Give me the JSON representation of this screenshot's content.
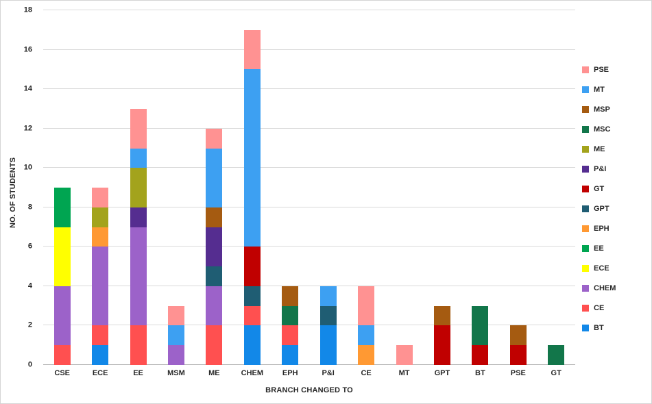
{
  "chart_data": {
    "type": "bar",
    "stacked": true,
    "title": "",
    "xlabel": "BRANCH CHANGED TO",
    "ylabel": "NO. OF STUDENTS",
    "ylim": [
      0,
      18
    ],
    "ytick_step": 2,
    "grid": "horizontal",
    "legend_position": "right",
    "categories": [
      "CSE",
      "ECE",
      "EE",
      "MSM",
      "ME",
      "CHEM",
      "EPH",
      "P&I",
      "CE",
      "MT",
      "GPT",
      "BT",
      "PSE",
      "GT"
    ],
    "series": [
      {
        "name": "BT",
        "color": "#1288E8",
        "values": [
          0,
          1,
          0,
          0,
          0,
          2,
          1,
          2,
          0,
          0,
          0,
          0,
          0,
          0
        ]
      },
      {
        "name": "CE",
        "color": "#FF5050",
        "values": [
          1,
          1,
          2,
          0,
          2,
          1,
          1,
          0,
          0,
          0,
          0,
          0,
          0,
          0
        ]
      },
      {
        "name": "CHEM",
        "color": "#9C62C9",
        "values": [
          3,
          4,
          5,
          1,
          2,
          0,
          0,
          0,
          0,
          0,
          0,
          0,
          0,
          0
        ]
      },
      {
        "name": "ECE",
        "color": "#FFFF00",
        "values": [
          3,
          0,
          0,
          0,
          0,
          0,
          0,
          0,
          0,
          0,
          0,
          0,
          0,
          0
        ]
      },
      {
        "name": "EE",
        "color": "#00A551",
        "values": [
          2,
          0,
          0,
          0,
          0,
          0,
          0,
          0,
          0,
          0,
          0,
          0,
          0,
          0
        ]
      },
      {
        "name": "EPH",
        "color": "#FF9933",
        "values": [
          0,
          1,
          0,
          0,
          0,
          0,
          0,
          0,
          1,
          0,
          0,
          0,
          0,
          0
        ]
      },
      {
        "name": "GPT",
        "color": "#1F5D73",
        "values": [
          0,
          0,
          0,
          0,
          1,
          1,
          0,
          1,
          0,
          0,
          0,
          0,
          0,
          0
        ]
      },
      {
        "name": "GT",
        "color": "#C00000",
        "values": [
          0,
          0,
          0,
          0,
          0,
          2,
          0,
          0,
          0,
          0,
          2,
          1,
          1,
          0
        ]
      },
      {
        "name": "P&I",
        "color": "#552D90",
        "values": [
          0,
          0,
          1,
          0,
          2,
          0,
          0,
          0,
          0,
          0,
          0,
          0,
          0,
          0
        ]
      },
      {
        "name": "ME",
        "color": "#A3A31C",
        "values": [
          0,
          1,
          2,
          0,
          0,
          0,
          0,
          0,
          0,
          0,
          0,
          0,
          0,
          0
        ]
      },
      {
        "name": "MSC",
        "color": "#12764A",
        "values": [
          0,
          0,
          0,
          0,
          0,
          0,
          1,
          0,
          0,
          0,
          0,
          2,
          0,
          1
        ]
      },
      {
        "name": "MSP",
        "color": "#A55B11",
        "values": [
          0,
          0,
          0,
          0,
          1,
          0,
          1,
          0,
          0,
          0,
          1,
          0,
          1,
          0
        ]
      },
      {
        "name": "MT",
        "color": "#3DA0F2",
        "values": [
          0,
          0,
          1,
          1,
          3,
          9,
          0,
          1,
          1,
          0,
          0,
          0,
          0,
          0
        ]
      },
      {
        "name": "PSE",
        "color": "#FF9292",
        "values": [
          0,
          1,
          2,
          1,
          1,
          2,
          0,
          0,
          2,
          1,
          0,
          0,
          0,
          0
        ]
      }
    ],
    "legend": [
      "PSE",
      "MT",
      "MSP",
      "MSC",
      "ME",
      "P&I",
      "GT",
      "GPT",
      "EPH",
      "EE",
      "ECE",
      "CHEM",
      "CE",
      "BT"
    ]
  }
}
